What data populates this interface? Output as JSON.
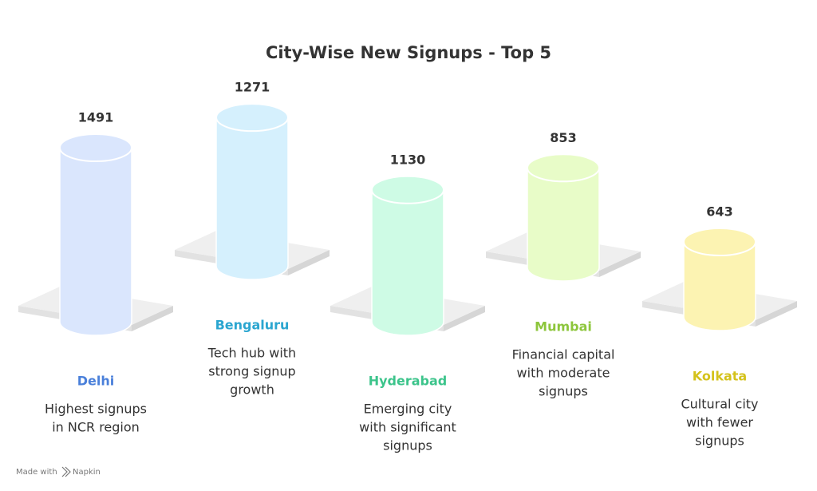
{
  "chart_data": {
    "type": "bar",
    "title": "City-Wise New Signups - Top 5",
    "categories": [
      "Delhi",
      "Bengaluru",
      "Hyderabad",
      "Mumbai",
      "Kolkata"
    ],
    "values": [
      1491,
      1271,
      1130,
      853,
      643
    ],
    "descriptions": [
      [
        "Highest signups",
        "in NCR region"
      ],
      [
        "Tech hub with",
        "strong signup",
        "growth"
      ],
      [
        "Emerging city",
        "with significant",
        "signups"
      ],
      [
        "Financial capital",
        "with moderate",
        "signups"
      ],
      [
        "Cultural city",
        "with fewer",
        "signups"
      ]
    ],
    "colors": [
      "#dae6fd",
      "#d5f0fd",
      "#cefbe5",
      "#e8fcc8",
      "#fcf3b2"
    ],
    "label_colors": [
      "#4a80da",
      "#2ba6d0",
      "#3cc48b",
      "#8dc63c",
      "#d4c21b"
    ]
  },
  "footer": {
    "prefix": "Made with",
    "brand": "Napkin"
  }
}
